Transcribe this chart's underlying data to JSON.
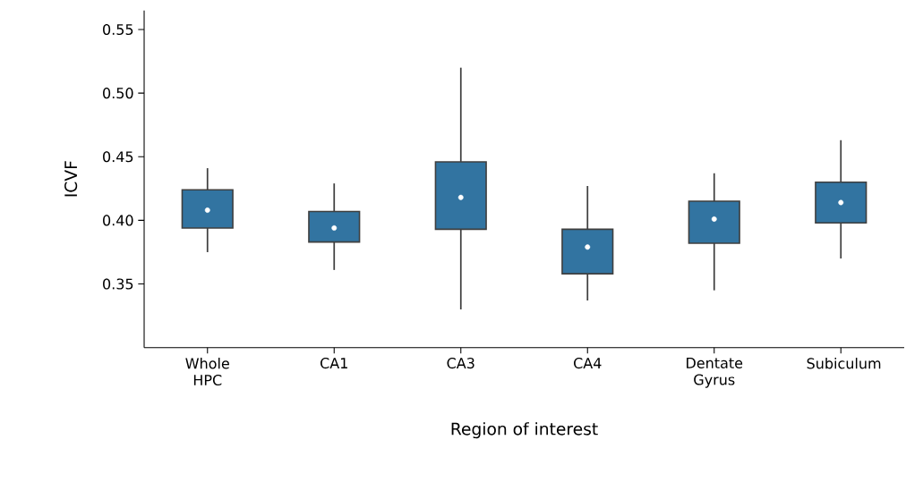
{
  "chart_data": {
    "type": "box",
    "xlabel": "Region of interest",
    "ylabel": "ICVF",
    "categories": [
      "Whole HPC",
      "CA1",
      "CA3",
      "CA4",
      "Dentate Gyrus",
      "Subiculum"
    ],
    "color": "#3274a1",
    "boxes": [
      {
        "low": 0.375,
        "q1": 0.394,
        "median": 0.408,
        "q3": 0.424,
        "high": 0.441
      },
      {
        "low": 0.361,
        "q1": 0.383,
        "median": 0.394,
        "q3": 0.407,
        "high": 0.429
      },
      {
        "low": 0.33,
        "q1": 0.393,
        "median": 0.418,
        "q3": 0.446,
        "high": 0.52
      },
      {
        "low": 0.337,
        "q1": 0.358,
        "median": 0.379,
        "q3": 0.393,
        "high": 0.427
      },
      {
        "low": 0.345,
        "q1": 0.382,
        "median": 0.401,
        "q3": 0.415,
        "high": 0.437
      },
      {
        "low": 0.37,
        "q1": 0.398,
        "median": 0.414,
        "q3": 0.43,
        "high": 0.463
      }
    ],
    "ylim": [
      0.3,
      0.565
    ],
    "yticks": [
      0.35,
      {
        "value": 0.4,
        "label": "0.40"
      },
      0.45,
      {
        "value": 0.5,
        "label": "0.50"
      },
      0.55
    ],
    "grid": false
  }
}
